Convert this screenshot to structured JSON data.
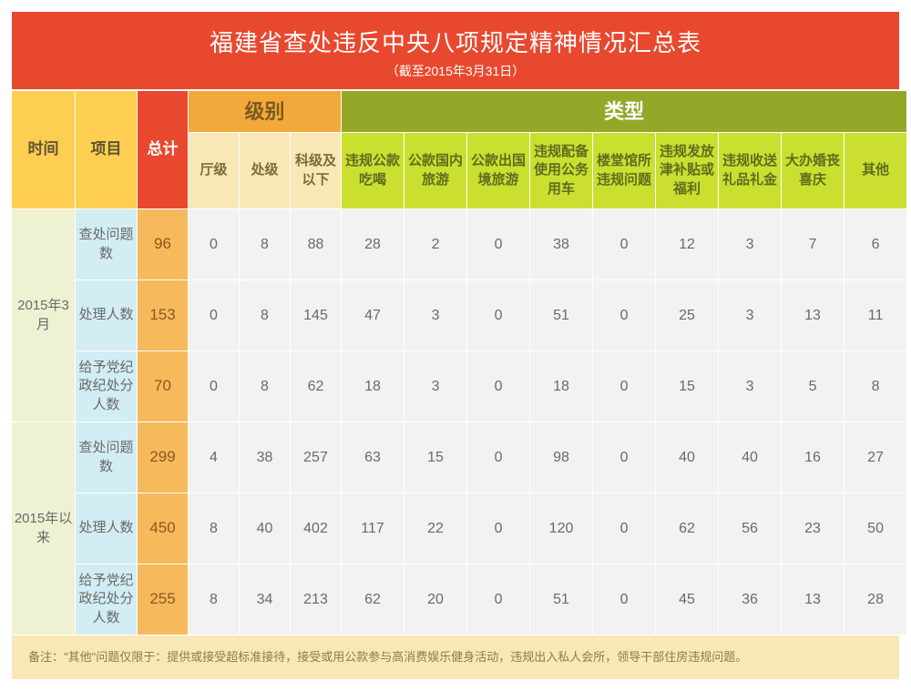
{
  "header": {
    "title": "福建省查处违反中央八项规定精神情况汇总表",
    "subtitle": "（截至2015年3月31日）"
  },
  "columns": {
    "time": "时间",
    "item": "项目",
    "total": "总计",
    "level_group": "级别",
    "type_group": "类型",
    "levels": [
      "厅级",
      "处级",
      "科级及以下"
    ],
    "types": [
      "违规公款吃喝",
      "公款国内旅游",
      "公款出国境旅游",
      "违规配备使用公务用车",
      "楼堂馆所违规问题",
      "违规发放津补贴或福利",
      "违规收送礼品礼金",
      "大办婚丧喜庆",
      "其他"
    ]
  },
  "periods": [
    {
      "label": "2015年3月",
      "rows": [
        {
          "item": "查处问题数",
          "total": "96",
          "levels": [
            "0",
            "8",
            "88"
          ],
          "types": [
            "28",
            "2",
            "0",
            "38",
            "0",
            "12",
            "3",
            "7",
            "6"
          ]
        },
        {
          "item": "处理人数",
          "total": "153",
          "levels": [
            "0",
            "8",
            "145"
          ],
          "types": [
            "47",
            "3",
            "0",
            "51",
            "0",
            "25",
            "3",
            "13",
            "11"
          ]
        },
        {
          "item": "给予党纪政纪处分人数",
          "total": "70",
          "levels": [
            "0",
            "8",
            "62"
          ],
          "types": [
            "18",
            "3",
            "0",
            "18",
            "0",
            "15",
            "3",
            "5",
            "8"
          ]
        }
      ]
    },
    {
      "label": "2015年以来",
      "rows": [
        {
          "item": "查处问题数",
          "total": "299",
          "levels": [
            "4",
            "38",
            "257"
          ],
          "types": [
            "63",
            "15",
            "0",
            "98",
            "0",
            "40",
            "40",
            "16",
            "27"
          ]
        },
        {
          "item": "处理人数",
          "total": "450",
          "levels": [
            "8",
            "40",
            "402"
          ],
          "types": [
            "117",
            "22",
            "0",
            "120",
            "0",
            "62",
            "56",
            "23",
            "50"
          ]
        },
        {
          "item": "给予党纪政纪处分人数",
          "total": "255",
          "levels": [
            "8",
            "34",
            "213"
          ],
          "types": [
            "62",
            "20",
            "0",
            "51",
            "0",
            "45",
            "36",
            "13",
            "28"
          ]
        }
      ]
    }
  ],
  "footnote": "备注：\"其他\"问题仅限于：提供或接受超标准接待，接受或用公款参与高消费娱乐健身活动，违规出入私人会所，领导干部住房违规问题。"
}
